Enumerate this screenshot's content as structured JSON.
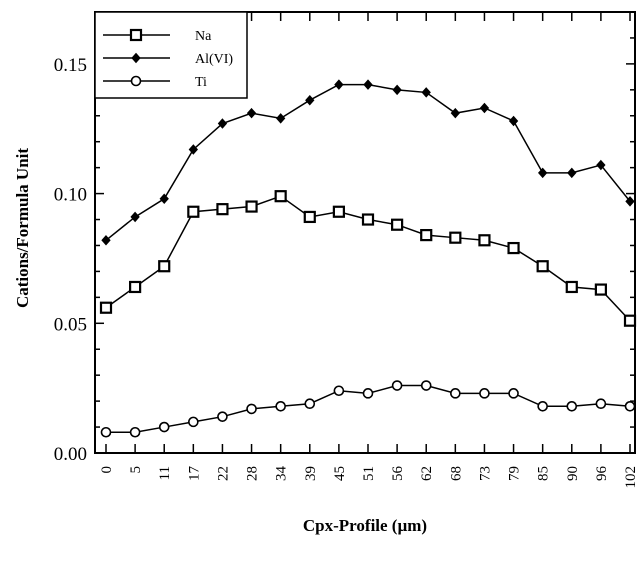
{
  "chart_data": {
    "type": "line",
    "xlabel": "Cpx-Profile (µm)",
    "ylabel": "Cations/Formula Unit",
    "categories": [
      "0",
      "5",
      "11",
      "17",
      "22",
      "28",
      "34",
      "39",
      "45",
      "51",
      "56",
      "62",
      "68",
      "73",
      "79",
      "85",
      "90",
      "96",
      "102"
    ],
    "ylim": [
      0,
      0.17
    ],
    "yticks": [
      "0.00",
      "0.05",
      "0.10",
      "0.15"
    ],
    "ytick_values": [
      0.0,
      0.05,
      0.1,
      0.15
    ],
    "legend_position": "top-left",
    "series": [
      {
        "name": "Na",
        "marker": "square",
        "values": [
          0.056,
          0.064,
          0.072,
          0.093,
          0.094,
          0.095,
          0.099,
          0.091,
          0.093,
          0.09,
          0.088,
          0.084,
          0.083,
          0.082,
          0.079,
          0.072,
          0.064,
          0.063,
          0.051
        ]
      },
      {
        "name": "Al(VI)",
        "marker": "diamond",
        "values": [
          0.082,
          0.091,
          0.098,
          0.117,
          0.127,
          0.131,
          0.129,
          0.136,
          0.142,
          0.142,
          0.14,
          0.139,
          0.131,
          0.133,
          0.128,
          0.108,
          0.108,
          0.111,
          0.097
        ]
      },
      {
        "name": "Ti",
        "marker": "circle",
        "values": [
          0.008,
          0.008,
          0.01,
          0.012,
          0.014,
          0.017,
          0.018,
          0.019,
          0.024,
          0.023,
          0.026,
          0.026,
          0.023,
          0.023,
          0.023,
          0.018,
          0.018,
          0.019,
          0.018
        ]
      }
    ]
  }
}
